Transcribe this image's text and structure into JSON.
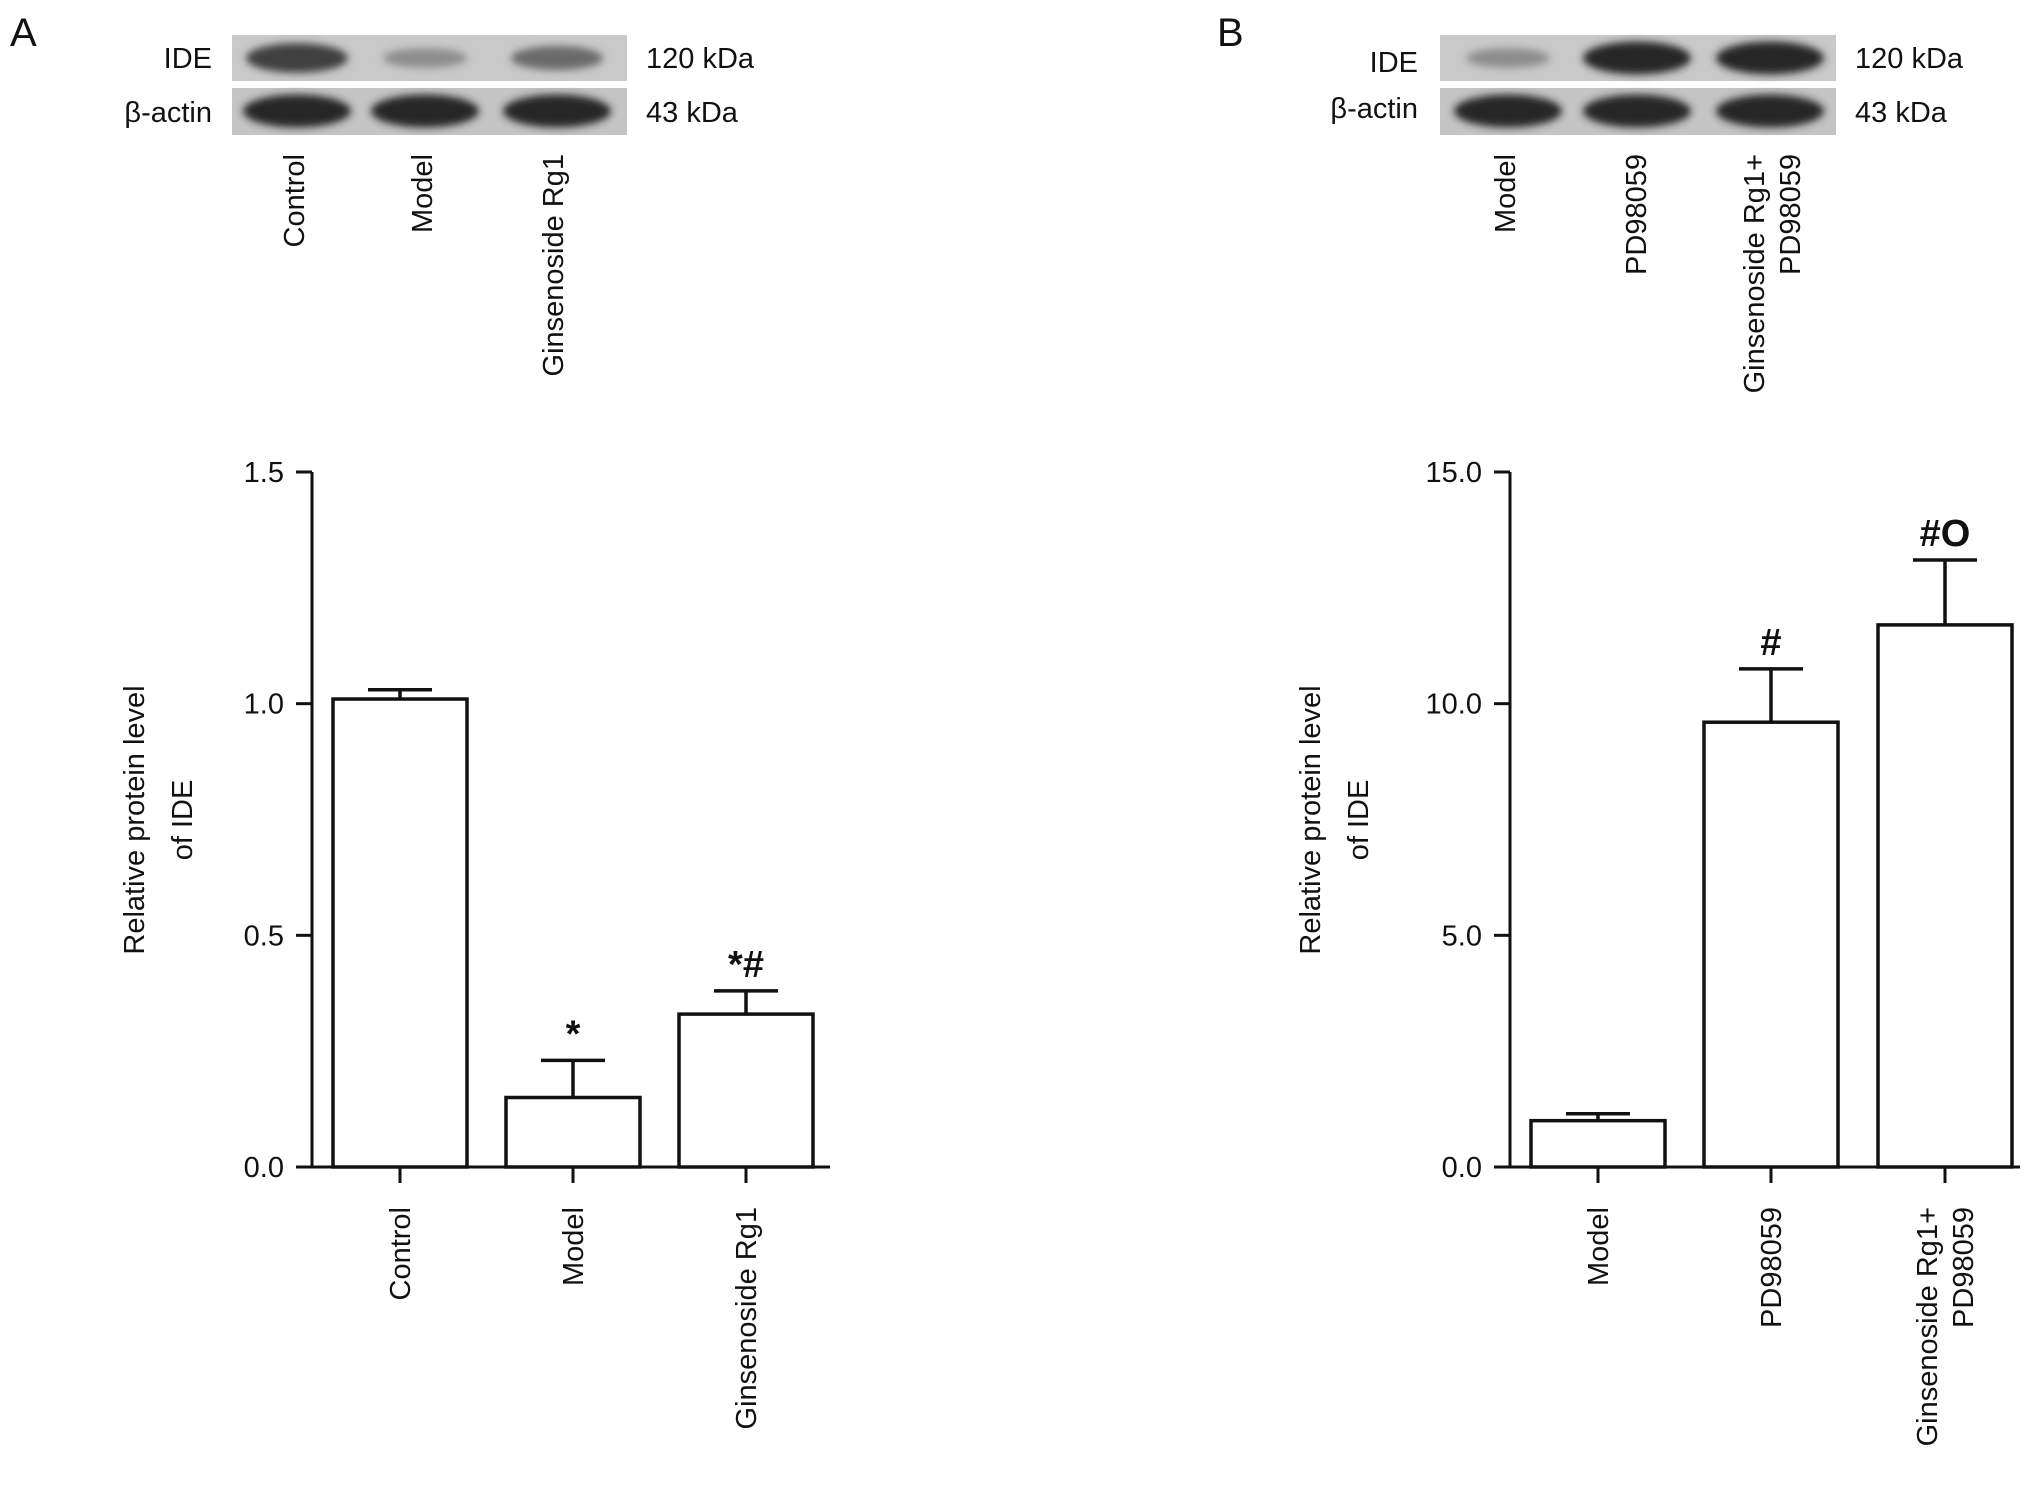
{
  "panels": [
    {
      "letter": "A",
      "blot": {
        "rows": [
          {
            "label": "IDE",
            "size": "120 kDa",
            "band_intensity": [
              0.8,
              0.35,
              0.55
            ]
          },
          {
            "label": "β-actin",
            "size": "43 kDa",
            "band_intensity": [
              0.95,
              0.95,
              0.95
            ]
          }
        ],
        "lanes": [
          {
            "label": "Control"
          },
          {
            "label": "Model"
          },
          {
            "label": "Ginsenoside Rg1"
          }
        ]
      },
      "chart_data": {
        "type": "bar",
        "categories": [
          "Control",
          "Model",
          "Ginsenoside Rg1"
        ],
        "values": [
          1.01,
          0.15,
          0.33
        ],
        "errors": [
          0.02,
          0.08,
          0.05
        ],
        "significance": [
          "",
          "*",
          "*#"
        ],
        "title": "",
        "ylabel_lines": [
          "Relative protein level",
          "of IDE"
        ],
        "ylim": [
          0,
          1.5
        ],
        "yticks": [
          {
            "value": 0.0,
            "label": "0.0"
          },
          {
            "value": 0.5,
            "label": "0.5"
          },
          {
            "value": 1.0,
            "label": "1.0"
          },
          {
            "value": 1.5,
            "label": "1.5"
          }
        ],
        "grid": false,
        "legend": "none",
        "bar_fill": "#ffffff",
        "bar_stroke": "#111111"
      }
    },
    {
      "letter": "B",
      "blot": {
        "rows": [
          {
            "label": "IDE",
            "size": "120 kDa",
            "band_intensity": [
              0.35,
              0.95,
              0.95
            ]
          },
          {
            "label": "β-actin",
            "size": "43 kDa",
            "band_intensity": [
              0.95,
              0.95,
              0.95
            ]
          }
        ],
        "lanes": [
          {
            "label": "Model"
          },
          {
            "label": "PD98059"
          },
          {
            "label": "Ginsenoside Rg1+",
            "label2": "PD98059"
          }
        ]
      },
      "chart_data": {
        "type": "bar",
        "categories": [
          "Model",
          "PD98059",
          "Ginsenoside Rg1+ PD98059"
        ],
        "category_lines": [
          [
            "Model"
          ],
          [
            "PD98059"
          ],
          [
            "Ginsenoside Rg1+",
            "PD98059"
          ]
        ],
        "values": [
          1.0,
          9.6,
          11.7
        ],
        "errors": [
          0.15,
          1.15,
          1.4
        ],
        "significance": [
          "",
          "#",
          "#O"
        ],
        "title": "",
        "ylabel_lines": [
          "Relative protein level",
          "of IDE"
        ],
        "ylim": [
          0,
          15
        ],
        "yticks": [
          {
            "value": 0.0,
            "label": "0.0"
          },
          {
            "value": 5.0,
            "label": "5.0"
          },
          {
            "value": 10.0,
            "label": "10.0"
          },
          {
            "value": 15.0,
            "label": "15.0"
          }
        ],
        "grid": false,
        "legend": "none",
        "bar_fill": "#ffffff",
        "bar_stroke": "#111111"
      }
    }
  ]
}
